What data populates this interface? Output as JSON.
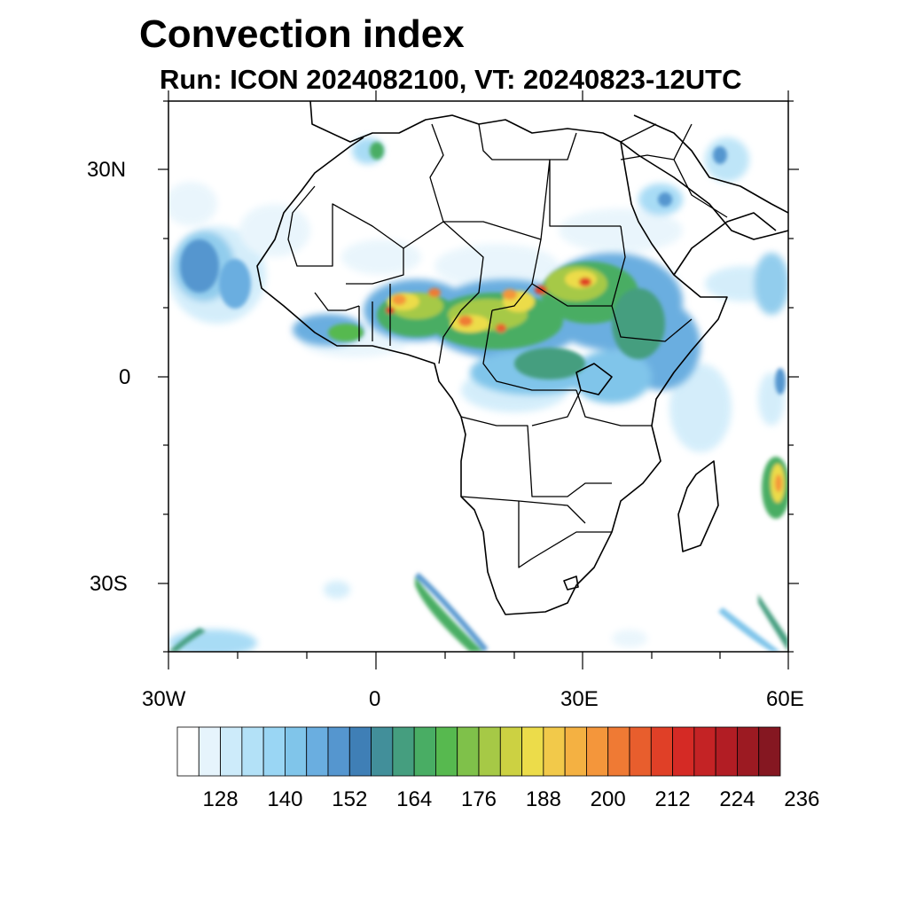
{
  "title": "Convection index",
  "subtitle": "Run: ICON 2024082100,  VT: 20240823-12UTC",
  "map": {
    "lon_range": [
      -30,
      60
    ],
    "lat_range": [
      -40,
      40
    ],
    "lat_tick_labels": [
      "30N",
      "0",
      "30S"
    ],
    "lat_tick_values": [
      30,
      0,
      -30
    ],
    "lon_tick_labels": [
      "30W",
      "0",
      "30E",
      "60E"
    ],
    "lon_tick_values": [
      -30,
      0,
      30,
      60
    ]
  },
  "colorbar": {
    "labels": [
      "128",
      "140",
      "152",
      "164",
      "176",
      "188",
      "200",
      "212",
      "224",
      "236"
    ],
    "colors": [
      "#ffffff",
      "#e6f4fc",
      "#cdebfa",
      "#b3e1f7",
      "#9ad6f4",
      "#80c5ea",
      "#6aaee0",
      "#5596cf",
      "#3f7fb6",
      "#428f9a",
      "#459e7f",
      "#49ad64",
      "#57b94f",
      "#7fc14a",
      "#a6c946",
      "#ccd142",
      "#ecdc4a",
      "#f2c94a",
      "#f4b142",
      "#f4963b",
      "#ef7a34",
      "#e85e2d",
      "#e04027",
      "#d52a25",
      "#c42325",
      "#b21d24",
      "#9c1a22",
      "#851721"
    ]
  },
  "colors": {
    "border": "#000000",
    "frame": "#000000"
  }
}
